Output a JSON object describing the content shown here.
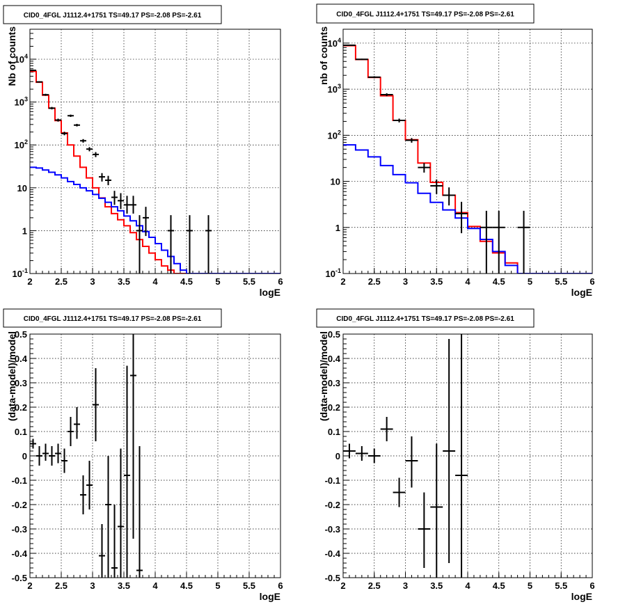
{
  "chart_data": [
    {
      "type": "line",
      "title": "CID0_4FGL J1112.4+1751 TS=49.17 PS=-2.08 PS=-2.61",
      "xlabel": "logE",
      "ylabel": "Nb of counts",
      "xlim": [
        2,
        6
      ],
      "ylim": [
        0.1,
        50000
      ],
      "yscale": "log",
      "grid": true,
      "xticks": [
        "2",
        "2.5",
        "3",
        "3.5",
        "4",
        "4.5",
        "5",
        "5.5",
        "6"
      ],
      "yticks": [
        {
          "v": 0.1,
          "m": "10",
          "e": "-1"
        },
        {
          "v": 1,
          "m": "1",
          "e": ""
        },
        {
          "v": 10,
          "m": "10",
          "e": ""
        },
        {
          "v": 100,
          "m": "10",
          "e": "2"
        },
        {
          "v": 1000,
          "m": "10",
          "e": "3"
        },
        {
          "v": 10000,
          "m": "10",
          "e": "4"
        }
      ],
      "bin_width": 0.1,
      "series": [
        {
          "color": "#ff0000",
          "x0": 2.0,
          "values": [
            5200,
            2900,
            1450,
            720,
            370,
            190,
            100,
            55,
            30,
            17,
            10,
            5.8,
            3.6,
            2.5,
            1.8,
            1.3,
            0.9,
            0.62,
            0.43,
            0.3,
            0.21,
            0.15,
            0.12,
            0.1,
            0.1,
            0.1,
            0.1,
            0.1,
            0.1,
            0.1,
            0.1,
            0.1,
            0.1,
            0.1,
            0.1,
            0.1,
            0.1,
            0.1,
            0.1,
            0.1
          ]
        },
        {
          "color": "#0000ff",
          "x0": 2.0,
          "values": [
            30,
            29,
            26,
            23,
            20,
            17,
            14,
            12,
            10,
            8.5,
            7,
            5.7,
            4.6,
            3.6,
            2.9,
            2.2,
            1.7,
            1.3,
            0.95,
            0.7,
            0.5,
            0.35,
            0.25,
            0.17,
            0.12,
            0.1,
            0.1,
            0.1,
            0.1,
            0.1,
            0.1,
            0.1,
            0.1,
            0.1,
            0.1,
            0.1,
            0.1,
            0.1,
            0.1,
            0.1
          ]
        }
      ],
      "points": [
        {
          "x": 2.05,
          "y": 5500,
          "lo": 5350,
          "hi": 5650
        },
        {
          "x": 2.15,
          "y": 2950,
          "lo": 2850,
          "hi": 3050
        },
        {
          "x": 2.25,
          "y": 1480,
          "lo": 1400,
          "hi": 1560
        },
        {
          "x": 2.35,
          "y": 720,
          "lo": 675,
          "hi": 770
        },
        {
          "x": 2.45,
          "y": 380,
          "lo": 350,
          "hi": 410
        },
        {
          "x": 2.55,
          "y": 185,
          "lo": 168,
          "hi": 203
        },
        {
          "x": 2.65,
          "y": 480,
          "lo": 450,
          "hi": 510
        },
        {
          "x": 2.75,
          "y": 290,
          "lo": 270,
          "hi": 310
        },
        {
          "x": 2.85,
          "y": 125,
          "lo": 113,
          "hi": 137
        },
        {
          "x": 2.95,
          "y": 80,
          "lo": 71,
          "hi": 89
        },
        {
          "x": 3.05,
          "y": 60,
          "lo": 52,
          "hi": 68
        },
        {
          "x": 3.15,
          "y": 18,
          "lo": 14,
          "hi": 22
        },
        {
          "x": 3.25,
          "y": 15,
          "lo": 11.5,
          "hi": 19
        },
        {
          "x": 3.35,
          "y": 6,
          "lo": 4,
          "hi": 8.5
        },
        {
          "x": 3.45,
          "y": 5,
          "lo": 3.2,
          "hi": 7.5
        },
        {
          "x": 3.55,
          "y": 4,
          "lo": 2.5,
          "hi": 6.5
        },
        {
          "x": 3.65,
          "y": 4,
          "lo": 2.5,
          "hi": 6.5
        },
        {
          "x": 3.75,
          "y": 1,
          "lo": 0.1,
          "hi": 2.3
        },
        {
          "x": 3.85,
          "y": 2,
          "lo": 0.75,
          "hi": 3.6
        },
        {
          "x": 4.25,
          "y": 1,
          "lo": 0.1,
          "hi": 2.3
        },
        {
          "x": 4.55,
          "y": 1,
          "lo": 0.1,
          "hi": 2.3
        },
        {
          "x": 4.85,
          "y": 1,
          "lo": 0.1,
          "hi": 2.3
        }
      ]
    },
    {
      "type": "line",
      "title": "CID0_4FGL J1112.4+1751 TS=49.17 PS=-2.08 PS=-2.61",
      "xlabel": "logE",
      "ylabel": "nb of counts",
      "xlim": [
        2,
        6
      ],
      "ylim": [
        0.1,
        20000
      ],
      "yscale": "log",
      "grid": true,
      "xticks": [
        "2",
        "2.5",
        "3",
        "3.5",
        "4",
        "4.5",
        "5",
        "5.5",
        "6"
      ],
      "yticks": [
        {
          "v": 0.1,
          "m": "10",
          "e": "-1"
        },
        {
          "v": 1,
          "m": "1",
          "e": ""
        },
        {
          "v": 10,
          "m": "10",
          "e": ""
        },
        {
          "v": 100,
          "m": "10",
          "e": "2"
        },
        {
          "v": 1000,
          "m": "10",
          "e": "3"
        },
        {
          "v": 10000,
          "m": "10",
          "e": "4"
        }
      ],
      "bin_width": 0.2,
      "series": [
        {
          "color": "#ff0000",
          "x0": 2.0,
          "values": [
            8800,
            4400,
            1800,
            720,
            210,
            80,
            25,
            9.5,
            5,
            2.1,
            1.05,
            0.5,
            0.28,
            0.17,
            0.1,
            0.1,
            0.1,
            0.1,
            0.1,
            0.1
          ]
        },
        {
          "color": "#0000ff",
          "x0": 2.0,
          "values": [
            62,
            48,
            34,
            22,
            14,
            9.3,
            5.5,
            3.5,
            2.4,
            1.6,
            0.95,
            0.55,
            0.3,
            0.15,
            0.1,
            0.1,
            0.1,
            0.1,
            0.1,
            0.1
          ]
        }
      ],
      "points": [
        {
          "x": 2.1,
          "y": 9000,
          "lo": 8800,
          "hi": 9200
        },
        {
          "x": 2.3,
          "y": 4450,
          "lo": 4320,
          "hi": 4580
        },
        {
          "x": 2.5,
          "y": 1820,
          "lo": 1730,
          "hi": 1910
        },
        {
          "x": 2.7,
          "y": 760,
          "lo": 705,
          "hi": 815
        },
        {
          "x": 2.9,
          "y": 210,
          "lo": 190,
          "hi": 230
        },
        {
          "x": 3.1,
          "y": 78,
          "lo": 69,
          "hi": 87
        },
        {
          "x": 3.3,
          "y": 20,
          "lo": 15.5,
          "hi": 25
        },
        {
          "x": 3.5,
          "y": 8,
          "lo": 5.3,
          "hi": 11
        },
        {
          "x": 3.7,
          "y": 5,
          "lo": 3,
          "hi": 7.4
        },
        {
          "x": 3.9,
          "y": 2,
          "lo": 0.75,
          "hi": 3.6
        },
        {
          "x": 4.3,
          "y": 1,
          "lo": 0.1,
          "hi": 2.3
        },
        {
          "x": 4.5,
          "y": 1,
          "lo": 0.1,
          "hi": 2.3
        },
        {
          "x": 4.9,
          "y": 1,
          "lo": 0.1,
          "hi": 2.3
        }
      ]
    },
    {
      "type": "scatter",
      "title": "CID0_4FGL J1112.4+1751 TS=49.17 PS=-2.08 PS=-2.61",
      "xlabel": "logE",
      "ylabel": "(data-model)/model",
      "xlim": [
        2,
        6
      ],
      "ylim": [
        -0.5,
        0.5
      ],
      "yscale": "linear",
      "grid": true,
      "xticks": [
        "2",
        "2.5",
        "3",
        "3.5",
        "4",
        "4.5",
        "5",
        "5.5",
        "6"
      ],
      "yticks": [
        "-0.5",
        "-0.4",
        "-0.3",
        "-0.2",
        "-0.1",
        "0",
        "0.1",
        "0.2",
        "0.3",
        "0.4",
        "0.5"
      ],
      "bin_width": 0.1,
      "points": [
        {
          "x": 2.05,
          "y": 0.05,
          "lo": 0.03,
          "hi": 0.07
        },
        {
          "x": 2.15,
          "y": 0.0,
          "lo": -0.04,
          "hi": 0.04
        },
        {
          "x": 2.25,
          "y": 0.01,
          "lo": -0.02,
          "hi": 0.05
        },
        {
          "x": 2.35,
          "y": 0.0,
          "lo": -0.04,
          "hi": 0.04
        },
        {
          "x": 2.45,
          "y": 0.01,
          "lo": -0.03,
          "hi": 0.05
        },
        {
          "x": 2.55,
          "y": -0.02,
          "lo": -0.07,
          "hi": 0.03
        },
        {
          "x": 2.65,
          "y": 0.1,
          "lo": 0.04,
          "hi": 0.16
        },
        {
          "x": 2.75,
          "y": 0.13,
          "lo": 0.07,
          "hi": 0.2
        },
        {
          "x": 2.85,
          "y": -0.16,
          "lo": -0.24,
          "hi": -0.08
        },
        {
          "x": 2.95,
          "y": -0.12,
          "lo": -0.22,
          "hi": -0.02
        },
        {
          "x": 3.05,
          "y": 0.21,
          "lo": 0.06,
          "hi": 0.36
        },
        {
          "x": 3.15,
          "y": -0.41,
          "lo": -0.5,
          "hi": -0.28
        },
        {
          "x": 3.25,
          "y": -0.2,
          "lo": -0.5,
          "hi": 0.0
        },
        {
          "x": 3.35,
          "y": -0.46,
          "lo": -0.5,
          "hi": -0.2
        },
        {
          "x": 3.45,
          "y": -0.29,
          "lo": -0.5,
          "hi": 0.03
        },
        {
          "x": 3.55,
          "y": -0.08,
          "lo": -0.5,
          "hi": 0.37
        },
        {
          "x": 3.65,
          "y": 0.33,
          "lo": -0.34,
          "hi": 0.5
        },
        {
          "x": 3.75,
          "y": -0.47,
          "lo": -0.5,
          "hi": 0.04
        }
      ]
    },
    {
      "type": "scatter",
      "title": "CID0_4FGL J1112.4+1751 TS=49.17 PS=-2.08 PS=-2.61",
      "xlabel": "logE",
      "ylabel": "(data-model)/model",
      "xlim": [
        2,
        6
      ],
      "ylim": [
        -0.5,
        0.5
      ],
      "yscale": "linear",
      "grid": true,
      "xticks": [
        "2",
        "2.5",
        "3",
        "3.5",
        "4",
        "4.5",
        "5",
        "5.5",
        "6"
      ],
      "yticks": [
        "-0.5",
        "-0.4",
        "-0.3",
        "-0.2",
        "-0.1",
        "0",
        "0.1",
        "0.2",
        "0.3",
        "0.4",
        "0.5"
      ],
      "bin_width": 0.2,
      "points": [
        {
          "x": 2.1,
          "y": 0.02,
          "lo": -0.01,
          "hi": 0.05
        },
        {
          "x": 2.3,
          "y": 0.01,
          "lo": -0.02,
          "hi": 0.04
        },
        {
          "x": 2.5,
          "y": 0.0,
          "lo": -0.03,
          "hi": 0.03
        },
        {
          "x": 2.7,
          "y": 0.11,
          "lo": 0.06,
          "hi": 0.16
        },
        {
          "x": 2.9,
          "y": -0.15,
          "lo": -0.21,
          "hi": -0.09
        },
        {
          "x": 3.1,
          "y": -0.02,
          "lo": -0.13,
          "hi": 0.08
        },
        {
          "x": 3.3,
          "y": -0.3,
          "lo": -0.46,
          "hi": -0.15
        },
        {
          "x": 3.5,
          "y": -0.21,
          "lo": -0.5,
          "hi": 0.05
        },
        {
          "x": 3.7,
          "y": 0.02,
          "lo": -0.44,
          "hi": 0.48
        },
        {
          "x": 3.9,
          "y": -0.08,
          "lo": -0.5,
          "hi": 0.5
        }
      ]
    }
  ]
}
